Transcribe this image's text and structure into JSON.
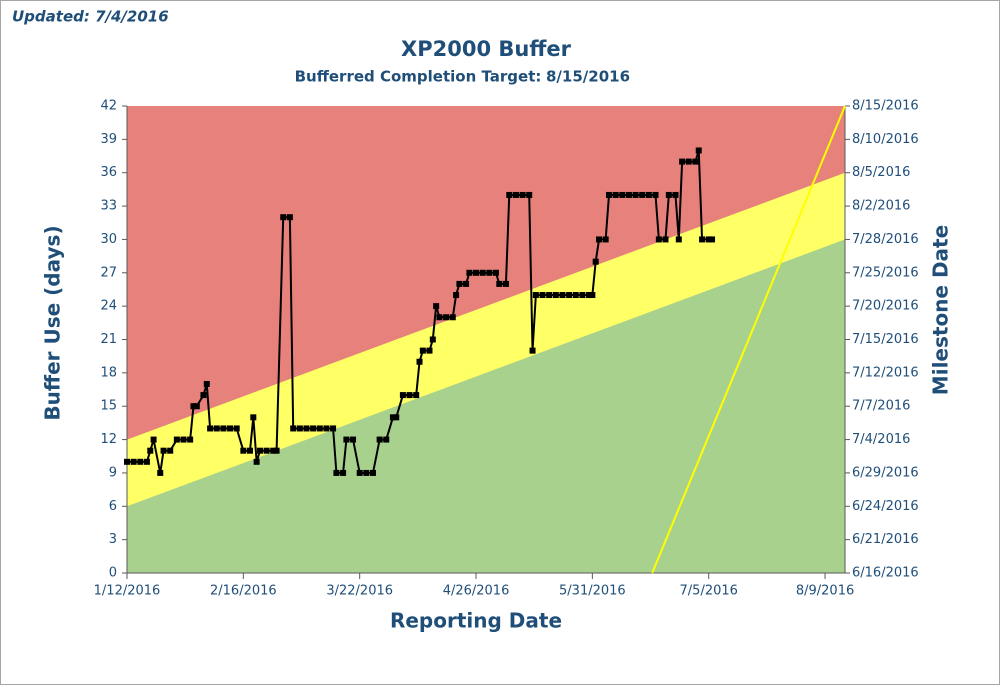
{
  "updated": "Updated: 7/4/2016",
  "chart_data": {
    "type": "line",
    "title": "XP2000 Buffer",
    "subtitle_label": "Bufferred Completion Target:",
    "subtitle_date": "8/15/2016",
    "ylabel": "Buffer Use (days)",
    "y2label": "Milestone Date",
    "xlabel": "Reporting Date",
    "xlim": [
      "1/12/2016",
      "8/15/2016"
    ],
    "xticks": [
      "1/12/2016",
      "2/16/2016",
      "3/22/2016",
      "4/26/2016",
      "5/31/2016",
      "7/5/2016",
      "8/9/2016"
    ],
    "ylim": [
      0,
      42
    ],
    "yticks": [
      0,
      3,
      6,
      9,
      12,
      15,
      18,
      21,
      24,
      27,
      30,
      33,
      36,
      39,
      42
    ],
    "y2lim": [
      0,
      42
    ],
    "y2ticks": [
      {
        "value": 0,
        "label": "6/16/2016"
      },
      {
        "value": 3,
        "label": "6/21/2016"
      },
      {
        "value": 6,
        "label": "6/24/2016"
      },
      {
        "value": 9,
        "label": "6/29/2016"
      },
      {
        "value": 12,
        "label": "7/4/2016"
      },
      {
        "value": 15,
        "label": "7/7/2016"
      },
      {
        "value": 18,
        "label": "7/12/2016"
      },
      {
        "value": 21,
        "label": "7/15/2016"
      },
      {
        "value": 24,
        "label": "7/20/2016"
      },
      {
        "value": 27,
        "label": "7/25/2016"
      },
      {
        "value": 30,
        "label": "7/28/2016"
      },
      {
        "value": 33,
        "label": "8/2/2016"
      },
      {
        "value": 36,
        "label": "8/5/2016"
      },
      {
        "value": 39,
        "label": "8/10/2016"
      },
      {
        "value": 42,
        "label": "8/15/2016"
      }
    ],
    "background": "#e6817b",
    "zones": [
      {
        "color": "#ffff66",
        "upper": [
          12,
          36
        ]
      },
      {
        "color": "#a9d18e",
        "upper": [
          6,
          30
        ]
      }
    ],
    "series": [
      {
        "color": "#ffff00",
        "axis": "y2",
        "x": [
          "6/18/2016",
          "8/15/2016"
        ],
        "values": [
          0,
          42
        ]
      },
      {
        "color": "#000000",
        "markers": true,
        "x": [
          "1/12/2016",
          "1/14/2016",
          "1/16/2016",
          "1/18/2016",
          "1/19/2016",
          "1/20/2016",
          "1/22/2016",
          "1/23/2016",
          "1/25/2016",
          "1/27/2016",
          "1/29/2016",
          "1/31/2016",
          "2/1/2016",
          "2/2/2016",
          "2/4/2016",
          "2/5/2016",
          "2/6/2016",
          "2/8/2016",
          "2/10/2016",
          "2/12/2016",
          "2/14/2016",
          "2/16/2016",
          "2/18/2016",
          "2/19/2016",
          "2/20/2016",
          "2/21/2016",
          "2/23/2016",
          "2/25/2016",
          "2/26/2016",
          "2/28/2016",
          "3/1/2016",
          "3/2/2016",
          "3/4/2016",
          "3/6/2016",
          "3/8/2016",
          "3/10/2016",
          "3/12/2016",
          "3/14/2016",
          "3/15/2016",
          "3/17/2016",
          "3/18/2016",
          "3/20/2016",
          "3/22/2016",
          "3/24/2016",
          "3/26/2016",
          "3/28/2016",
          "3/30/2016",
          "4/1/2016",
          "4/2/2016",
          "4/4/2016",
          "4/6/2016",
          "4/8/2016",
          "4/9/2016",
          "4/10/2016",
          "4/12/2016",
          "4/13/2016",
          "4/14/2016",
          "4/15/2016",
          "4/17/2016",
          "4/19/2016",
          "4/20/2016",
          "4/21/2016",
          "4/23/2016",
          "4/24/2016",
          "4/26/2016",
          "4/28/2016",
          "4/30/2016",
          "5/2/2016",
          "5/3/2016",
          "5/5/2016",
          "5/6/2016",
          "5/8/2016",
          "5/10/2016",
          "5/12/2016",
          "5/13/2016",
          "5/14/2016",
          "5/16/2016",
          "5/18/2016",
          "5/20/2016",
          "5/22/2016",
          "5/24/2016",
          "5/26/2016",
          "5/28/2016",
          "5/30/2016",
          "5/31/2016",
          "6/1/2016",
          "6/2/2016",
          "6/4/2016",
          "6/5/2016",
          "6/7/2016",
          "6/9/2016",
          "6/11/2016",
          "6/13/2016",
          "6/15/2016",
          "6/17/2016",
          "6/19/2016",
          "6/20/2016",
          "6/22/2016",
          "6/23/2016",
          "6/25/2016",
          "6/26/2016",
          "6/27/2016",
          "6/29/2016",
          "7/1/2016",
          "7/2/2016",
          "7/3/2016",
          "7/5/2016",
          "7/6/2016"
        ],
        "values": [
          10,
          10,
          10,
          10,
          11,
          12,
          9,
          11,
          11,
          12,
          12,
          12,
          15,
          15,
          16,
          17,
          13,
          13,
          13,
          13,
          13,
          11,
          11,
          14,
          10,
          11,
          11,
          11,
          11,
          32,
          32,
          13,
          13,
          13,
          13,
          13,
          13,
          13,
          9,
          9,
          12,
          12,
          9,
          9,
          9,
          12,
          12,
          14,
          14,
          16,
          16,
          16,
          19,
          20,
          20,
          21,
          24,
          23,
          23,
          23,
          25,
          26,
          26,
          27,
          27,
          27,
          27,
          27,
          26,
          26,
          34,
          34,
          34,
          34,
          20,
          25,
          25,
          25,
          25,
          25,
          25,
          25,
          25,
          25,
          25,
          28,
          30,
          30,
          34,
          34,
          34,
          34,
          34,
          34,
          34,
          34,
          30,
          30,
          34,
          34,
          30,
          37,
          37,
          37,
          38,
          30,
          30,
          30
        ]
      }
    ]
  }
}
